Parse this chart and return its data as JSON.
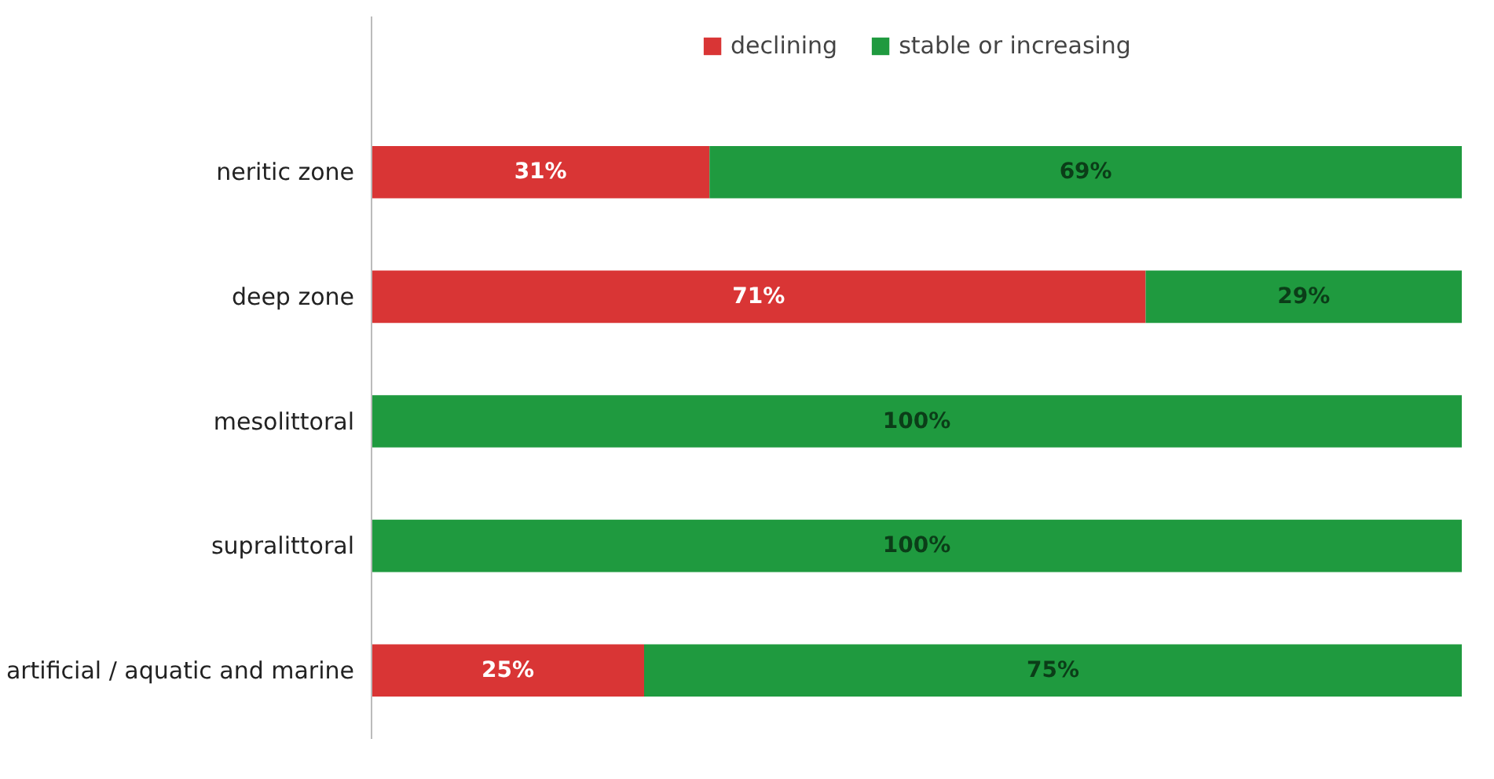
{
  "chart_data": {
    "type": "bar",
    "orientation": "horizontal",
    "stacked": true,
    "categories": [
      "neritic zone",
      "deep zone",
      "mesolittoral",
      "supralittoral",
      "artificial / aquatic and marine"
    ],
    "series": [
      {
        "name": "declining",
        "color": "#d93535",
        "values": [
          31,
          71,
          0,
          0,
          25
        ],
        "value_labels": [
          "31%",
          "71%",
          null,
          null,
          "25%"
        ]
      },
      {
        "name": "stable or increasing",
        "color": "#1f9a3f",
        "values": [
          69,
          29,
          100,
          100,
          75
        ],
        "value_labels": [
          "69%",
          "29%",
          "100%",
          "100%",
          "75%"
        ]
      }
    ],
    "xlim": [
      0,
      100
    ],
    "tick_labels": "y",
    "grid": false,
    "legend": "top"
  }
}
